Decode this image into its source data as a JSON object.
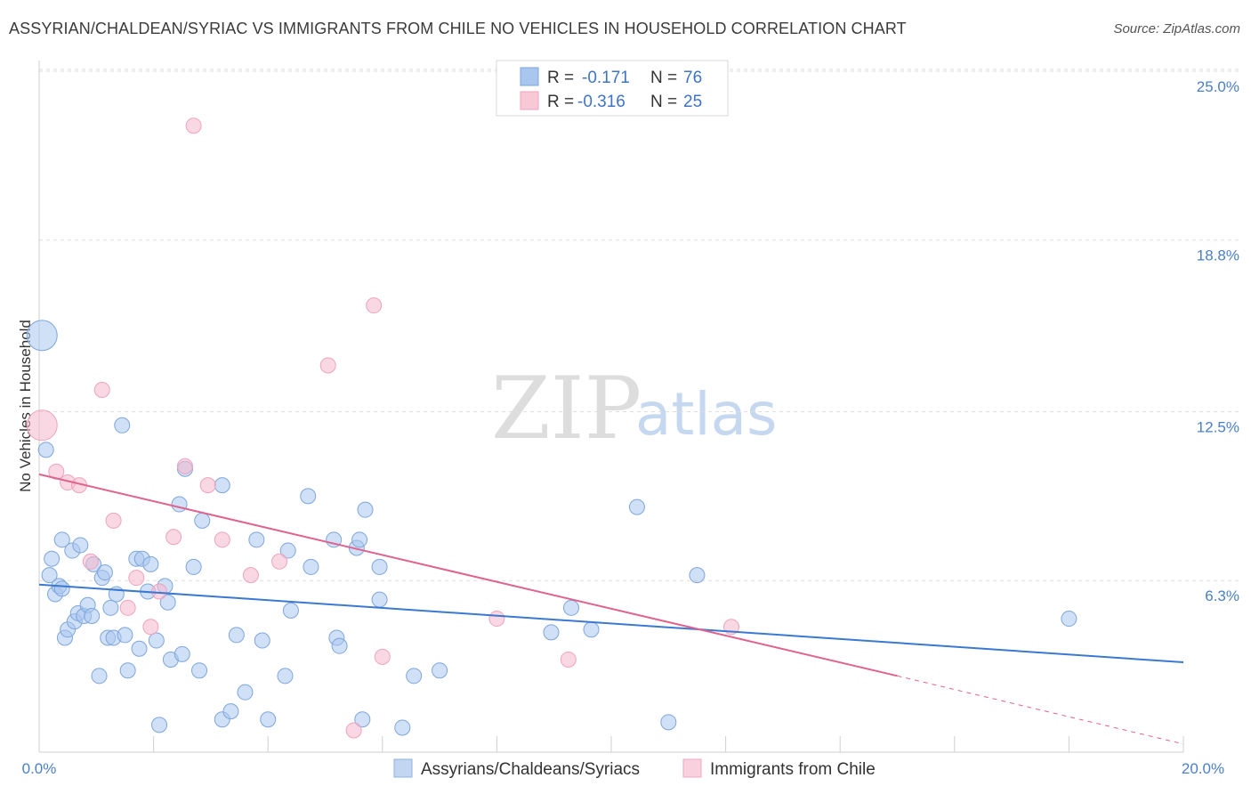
{
  "header": {
    "title": "ASSYRIAN/CHALDEAN/SYRIAC VS IMMIGRANTS FROM CHILE NO VEHICLES IN HOUSEHOLD CORRELATION CHART",
    "source": "Source: ZipAtlas.com"
  },
  "legend": {
    "series1": {
      "r_label": "R =",
      "r_value": "-0.171",
      "n_label": "N =",
      "n_value": "76"
    },
    "series2": {
      "r_label": "R =",
      "r_value": "-0.316",
      "n_label": "N =",
      "n_value": "25"
    }
  },
  "watermark": {
    "zip": "ZIP",
    "atlas": "atlas"
  },
  "chart_data": {
    "type": "scatter",
    "title": "ASSYRIAN/CHALDEAN/SYRIAC VS IMMIGRANTS FROM CHILE NO VEHICLES IN HOUSEHOLD CORRELATION CHART",
    "xlabel": "",
    "ylabel": "No Vehicles in Household",
    "xlim": [
      0,
      20
    ],
    "ylim": [
      0,
      25
    ],
    "x_tick_labels": [
      "0.0%",
      "20.0%"
    ],
    "y_ticks": [
      6.3,
      12.5,
      18.8,
      25.0
    ],
    "y_tick_labels": [
      "6.3%",
      "12.5%",
      "18.8%",
      "25.0%"
    ],
    "legend_position": "bottom",
    "series": [
      {
        "name": "Assyrians/Chaldeans/Syriacs",
        "color": "#a9c6ee",
        "line_color": "#3b78d0",
        "trend": {
          "x": [
            0,
            20
          ],
          "y": [
            6.15,
            3.3
          ]
        },
        "points": [
          {
            "x": 0.05,
            "y": 15.3,
            "size": "large"
          },
          {
            "x": 0.12,
            "y": 11.1
          },
          {
            "x": 0.18,
            "y": 6.5
          },
          {
            "x": 0.22,
            "y": 7.1
          },
          {
            "x": 0.28,
            "y": 5.8
          },
          {
            "x": 0.35,
            "y": 6.1
          },
          {
            "x": 0.4,
            "y": 7.8
          },
          {
            "x": 0.45,
            "y": 4.2
          },
          {
            "x": 0.5,
            "y": 4.5
          },
          {
            "x": 0.58,
            "y": 7.4
          },
          {
            "x": 0.62,
            "y": 4.8
          },
          {
            "x": 0.68,
            "y": 5.1
          },
          {
            "x": 0.72,
            "y": 7.6
          },
          {
            "x": 0.78,
            "y": 5.0
          },
          {
            "x": 0.85,
            "y": 5.4
          },
          {
            "x": 0.92,
            "y": 5.0
          },
          {
            "x": 0.95,
            "y": 6.9
          },
          {
            "x": 1.05,
            "y": 2.8
          },
          {
            "x": 1.1,
            "y": 6.4
          },
          {
            "x": 1.15,
            "y": 6.6
          },
          {
            "x": 1.2,
            "y": 4.2
          },
          {
            "x": 1.25,
            "y": 5.3
          },
          {
            "x": 1.3,
            "y": 4.2
          },
          {
            "x": 1.35,
            "y": 5.8
          },
          {
            "x": 1.45,
            "y": 12.0
          },
          {
            "x": 1.5,
            "y": 4.3
          },
          {
            "x": 1.55,
            "y": 3.0
          },
          {
            "x": 1.7,
            "y": 7.1
          },
          {
            "x": 1.75,
            "y": 3.8
          },
          {
            "x": 1.8,
            "y": 7.1
          },
          {
            "x": 1.9,
            "y": 5.9
          },
          {
            "x": 1.95,
            "y": 6.9
          },
          {
            "x": 2.05,
            "y": 4.1
          },
          {
            "x": 2.1,
            "y": 1.0
          },
          {
            "x": 2.2,
            "y": 6.1
          },
          {
            "x": 2.25,
            "y": 5.5
          },
          {
            "x": 2.3,
            "y": 3.4
          },
          {
            "x": 2.45,
            "y": 9.1
          },
          {
            "x": 2.5,
            "y": 3.6
          },
          {
            "x": 2.55,
            "y": 10.4
          },
          {
            "x": 2.7,
            "y": 6.8
          },
          {
            "x": 2.8,
            "y": 3.0
          },
          {
            "x": 2.85,
            "y": 8.5
          },
          {
            "x": 3.2,
            "y": 9.8
          },
          {
            "x": 3.2,
            "y": 1.2
          },
          {
            "x": 3.35,
            "y": 1.5
          },
          {
            "x": 3.45,
            "y": 4.3
          },
          {
            "x": 3.6,
            "y": 2.2
          },
          {
            "x": 3.8,
            "y": 7.8
          },
          {
            "x": 3.9,
            "y": 4.1
          },
          {
            "x": 4.0,
            "y": 1.2
          },
          {
            "x": 4.3,
            "y": 2.8
          },
          {
            "x": 4.35,
            "y": 7.4
          },
          {
            "x": 4.4,
            "y": 5.2
          },
          {
            "x": 4.75,
            "y": 6.8
          },
          {
            "x": 4.7,
            "y": 9.4
          },
          {
            "x": 5.15,
            "y": 7.8
          },
          {
            "x": 5.2,
            "y": 4.2
          },
          {
            "x": 5.25,
            "y": 3.9
          },
          {
            "x": 5.55,
            "y": 7.5
          },
          {
            "x": 5.6,
            "y": 7.8
          },
          {
            "x": 5.65,
            "y": 1.2
          },
          {
            "x": 5.7,
            "y": 8.9
          },
          {
            "x": 5.95,
            "y": 6.8
          },
          {
            "x": 5.95,
            "y": 5.6
          },
          {
            "x": 6.35,
            "y": 0.9
          },
          {
            "x": 6.55,
            "y": 2.8
          },
          {
            "x": 7.0,
            "y": 3.0
          },
          {
            "x": 8.95,
            "y": 4.4
          },
          {
            "x": 9.3,
            "y": 5.3
          },
          {
            "x": 9.65,
            "y": 4.5
          },
          {
            "x": 10.45,
            "y": 9.0
          },
          {
            "x": 11.0,
            "y": 1.1
          },
          {
            "x": 11.5,
            "y": 6.5
          },
          {
            "x": 18.0,
            "y": 4.9
          },
          {
            "x": 0.4,
            "y": 6.0
          }
        ]
      },
      {
        "name": "Immigrants from Chile",
        "color": "#f5b8cc",
        "line_color": "#e0628f",
        "trend": {
          "x": [
            0,
            15
          ],
          "y": [
            10.2,
            2.8
          ]
        },
        "trend_dashed": {
          "x": [
            15,
            20
          ],
          "y": [
            2.8,
            0.3
          ]
        },
        "points": [
          {
            "x": 0.05,
            "y": 12.0,
            "size": "large"
          },
          {
            "x": 0.3,
            "y": 10.3
          },
          {
            "x": 0.5,
            "y": 9.9
          },
          {
            "x": 0.7,
            "y": 9.8
          },
          {
            "x": 0.9,
            "y": 7.0
          },
          {
            "x": 1.1,
            "y": 13.3
          },
          {
            "x": 1.3,
            "y": 8.5
          },
          {
            "x": 1.55,
            "y": 5.3
          },
          {
            "x": 1.7,
            "y": 6.4
          },
          {
            "x": 1.95,
            "y": 4.6
          },
          {
            "x": 2.1,
            "y": 5.9
          },
          {
            "x": 2.35,
            "y": 7.9
          },
          {
            "x": 2.55,
            "y": 10.5
          },
          {
            "x": 2.95,
            "y": 9.8
          },
          {
            "x": 3.2,
            "y": 7.8
          },
          {
            "x": 3.7,
            "y": 6.5
          },
          {
            "x": 4.2,
            "y": 7.0
          },
          {
            "x": 2.7,
            "y": 23.0
          },
          {
            "x": 5.05,
            "y": 14.2
          },
          {
            "x": 5.5,
            "y": 0.8
          },
          {
            "x": 5.85,
            "y": 16.4
          },
          {
            "x": 6.0,
            "y": 3.5
          },
          {
            "x": 8.0,
            "y": 4.9
          },
          {
            "x": 9.25,
            "y": 3.4
          },
          {
            "x": 12.1,
            "y": 4.6
          }
        ]
      }
    ]
  },
  "bottom_legend": {
    "item1": "Assyrians/Chaldeans/Syriacs",
    "item2": "Immigrants from Chile"
  }
}
